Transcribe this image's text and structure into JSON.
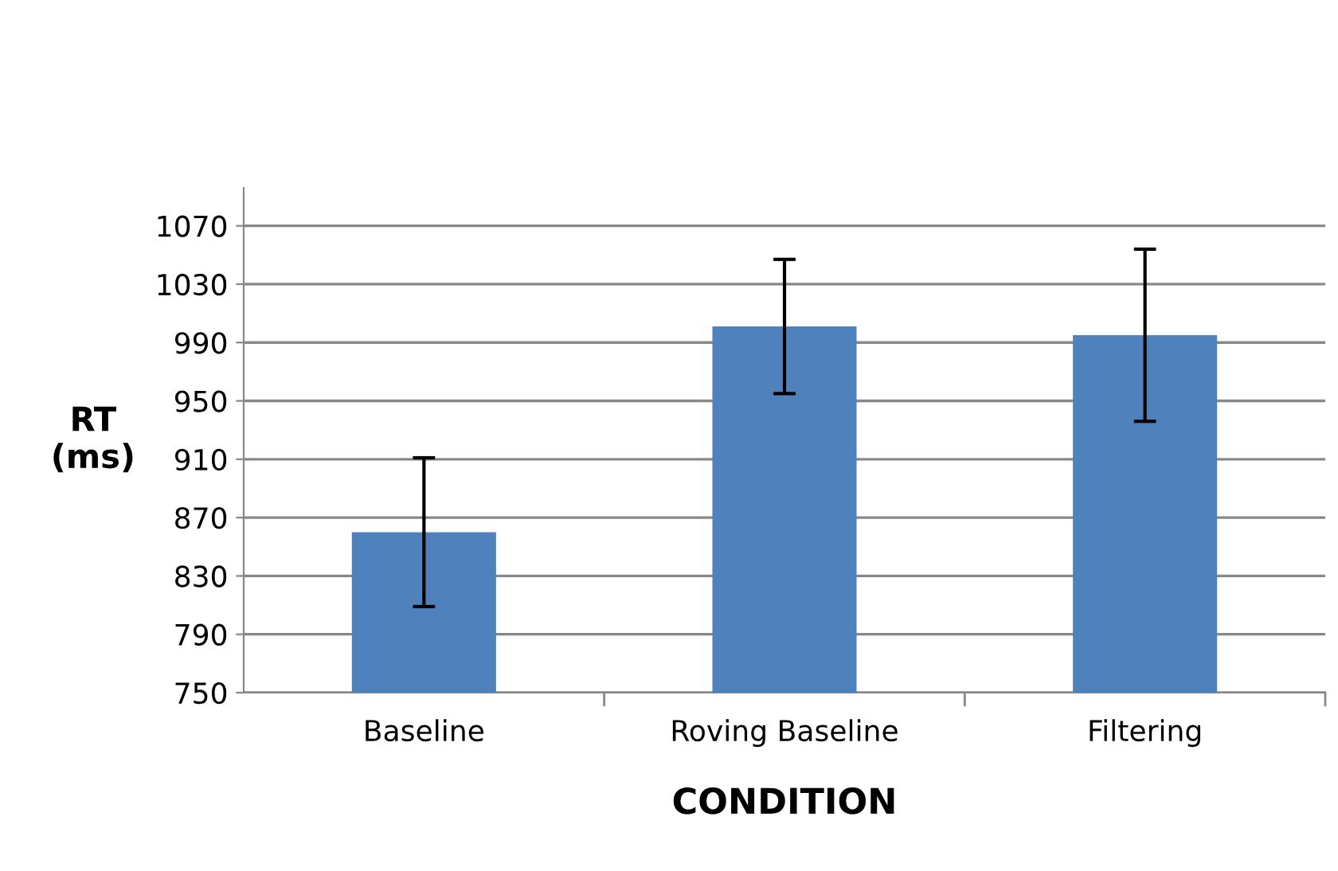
{
  "chart_data": {
    "type": "bar",
    "xlabel": "CONDITION",
    "ylabel": "RT\n(ms)",
    "categories": [
      "Baseline",
      "Roving Baseline",
      "Filtering"
    ],
    "values": [
      860,
      1001,
      995
    ],
    "errors": [
      51,
      46,
      59
    ],
    "color": "#4f81bd",
    "ylim": [
      750,
      1096
    ],
    "yticks": [
      750,
      790,
      830,
      870,
      910,
      950,
      990,
      1030,
      1070
    ],
    "grid": "y",
    "legend": false
  }
}
